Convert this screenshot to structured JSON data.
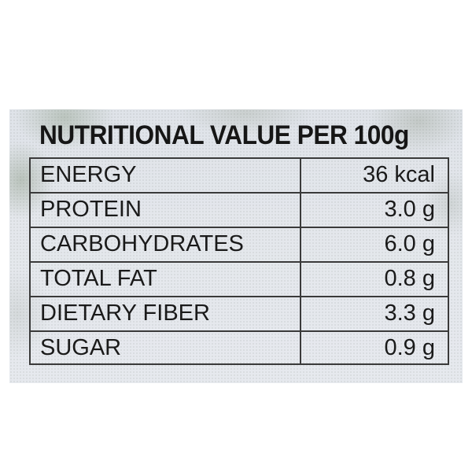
{
  "nutrition_label": {
    "title": "NUTRITIONAL VALUE PER 100g",
    "rows": [
      {
        "name": "ENERGY",
        "value": "36 kcal"
      },
      {
        "name": "PROTEIN",
        "value": "3.0 g"
      },
      {
        "name": "CARBOHYDRATES",
        "value": "6.0 g"
      },
      {
        "name": "TOTAL FAT",
        "value": "0.8 g"
      },
      {
        "name": "DIETARY FIBER",
        "value": "3.3 g"
      },
      {
        "name": "SUGAR",
        "value": "0.9 g"
      }
    ]
  },
  "colors": {
    "background": "#ffffff",
    "label_background": "#e4e7ec",
    "text": "#161616",
    "lines": "#3a3a3a"
  }
}
